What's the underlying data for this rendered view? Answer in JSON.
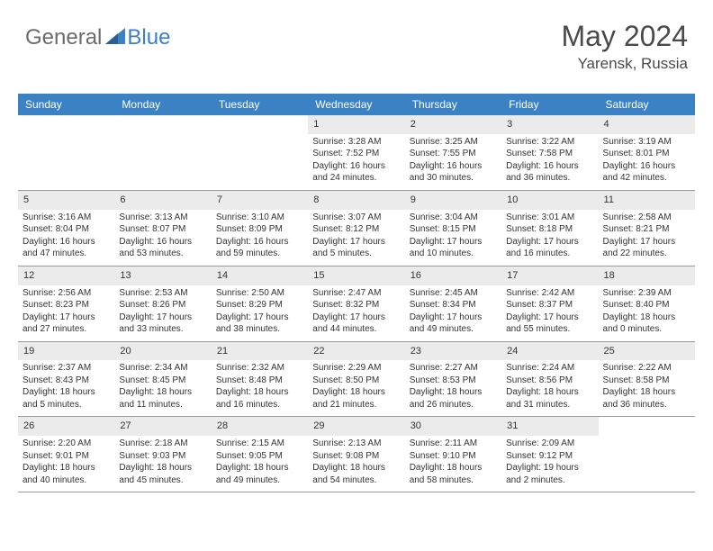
{
  "brand": {
    "text1": "General",
    "text2": "Blue"
  },
  "title": "May 2024",
  "location": "Yarensk, Russia",
  "colors": {
    "header_bg": "#3b82c4",
    "header_fg": "#ffffff",
    "daynum_bg": "#ebebeb",
    "text": "#333333",
    "border": "#999999",
    "brand_gray": "#6b6b6b",
    "brand_blue": "#3b82c4"
  },
  "dayHeaders": [
    "Sunday",
    "Monday",
    "Tuesday",
    "Wednesday",
    "Thursday",
    "Friday",
    "Saturday"
  ],
  "weeks": [
    [
      {
        "empty": true
      },
      {
        "empty": true
      },
      {
        "empty": true
      },
      {
        "num": "1",
        "sunrise": "Sunrise: 3:28 AM",
        "sunset": "Sunset: 7:52 PM",
        "daylight": "Daylight: 16 hours and 24 minutes."
      },
      {
        "num": "2",
        "sunrise": "Sunrise: 3:25 AM",
        "sunset": "Sunset: 7:55 PM",
        "daylight": "Daylight: 16 hours and 30 minutes."
      },
      {
        "num": "3",
        "sunrise": "Sunrise: 3:22 AM",
        "sunset": "Sunset: 7:58 PM",
        "daylight": "Daylight: 16 hours and 36 minutes."
      },
      {
        "num": "4",
        "sunrise": "Sunrise: 3:19 AM",
        "sunset": "Sunset: 8:01 PM",
        "daylight": "Daylight: 16 hours and 42 minutes."
      }
    ],
    [
      {
        "num": "5",
        "sunrise": "Sunrise: 3:16 AM",
        "sunset": "Sunset: 8:04 PM",
        "daylight": "Daylight: 16 hours and 47 minutes."
      },
      {
        "num": "6",
        "sunrise": "Sunrise: 3:13 AM",
        "sunset": "Sunset: 8:07 PM",
        "daylight": "Daylight: 16 hours and 53 minutes."
      },
      {
        "num": "7",
        "sunrise": "Sunrise: 3:10 AM",
        "sunset": "Sunset: 8:09 PM",
        "daylight": "Daylight: 16 hours and 59 minutes."
      },
      {
        "num": "8",
        "sunrise": "Sunrise: 3:07 AM",
        "sunset": "Sunset: 8:12 PM",
        "daylight": "Daylight: 17 hours and 5 minutes."
      },
      {
        "num": "9",
        "sunrise": "Sunrise: 3:04 AM",
        "sunset": "Sunset: 8:15 PM",
        "daylight": "Daylight: 17 hours and 10 minutes."
      },
      {
        "num": "10",
        "sunrise": "Sunrise: 3:01 AM",
        "sunset": "Sunset: 8:18 PM",
        "daylight": "Daylight: 17 hours and 16 minutes."
      },
      {
        "num": "11",
        "sunrise": "Sunrise: 2:58 AM",
        "sunset": "Sunset: 8:21 PM",
        "daylight": "Daylight: 17 hours and 22 minutes."
      }
    ],
    [
      {
        "num": "12",
        "sunrise": "Sunrise: 2:56 AM",
        "sunset": "Sunset: 8:23 PM",
        "daylight": "Daylight: 17 hours and 27 minutes."
      },
      {
        "num": "13",
        "sunrise": "Sunrise: 2:53 AM",
        "sunset": "Sunset: 8:26 PM",
        "daylight": "Daylight: 17 hours and 33 minutes."
      },
      {
        "num": "14",
        "sunrise": "Sunrise: 2:50 AM",
        "sunset": "Sunset: 8:29 PM",
        "daylight": "Daylight: 17 hours and 38 minutes."
      },
      {
        "num": "15",
        "sunrise": "Sunrise: 2:47 AM",
        "sunset": "Sunset: 8:32 PM",
        "daylight": "Daylight: 17 hours and 44 minutes."
      },
      {
        "num": "16",
        "sunrise": "Sunrise: 2:45 AM",
        "sunset": "Sunset: 8:34 PM",
        "daylight": "Daylight: 17 hours and 49 minutes."
      },
      {
        "num": "17",
        "sunrise": "Sunrise: 2:42 AM",
        "sunset": "Sunset: 8:37 PM",
        "daylight": "Daylight: 17 hours and 55 minutes."
      },
      {
        "num": "18",
        "sunrise": "Sunrise: 2:39 AM",
        "sunset": "Sunset: 8:40 PM",
        "daylight": "Daylight: 18 hours and 0 minutes."
      }
    ],
    [
      {
        "num": "19",
        "sunrise": "Sunrise: 2:37 AM",
        "sunset": "Sunset: 8:43 PM",
        "daylight": "Daylight: 18 hours and 5 minutes."
      },
      {
        "num": "20",
        "sunrise": "Sunrise: 2:34 AM",
        "sunset": "Sunset: 8:45 PM",
        "daylight": "Daylight: 18 hours and 11 minutes."
      },
      {
        "num": "21",
        "sunrise": "Sunrise: 2:32 AM",
        "sunset": "Sunset: 8:48 PM",
        "daylight": "Daylight: 18 hours and 16 minutes."
      },
      {
        "num": "22",
        "sunrise": "Sunrise: 2:29 AM",
        "sunset": "Sunset: 8:50 PM",
        "daylight": "Daylight: 18 hours and 21 minutes."
      },
      {
        "num": "23",
        "sunrise": "Sunrise: 2:27 AM",
        "sunset": "Sunset: 8:53 PM",
        "daylight": "Daylight: 18 hours and 26 minutes."
      },
      {
        "num": "24",
        "sunrise": "Sunrise: 2:24 AM",
        "sunset": "Sunset: 8:56 PM",
        "daylight": "Daylight: 18 hours and 31 minutes."
      },
      {
        "num": "25",
        "sunrise": "Sunrise: 2:22 AM",
        "sunset": "Sunset: 8:58 PM",
        "daylight": "Daylight: 18 hours and 36 minutes."
      }
    ],
    [
      {
        "num": "26",
        "sunrise": "Sunrise: 2:20 AM",
        "sunset": "Sunset: 9:01 PM",
        "daylight": "Daylight: 18 hours and 40 minutes."
      },
      {
        "num": "27",
        "sunrise": "Sunrise: 2:18 AM",
        "sunset": "Sunset: 9:03 PM",
        "daylight": "Daylight: 18 hours and 45 minutes."
      },
      {
        "num": "28",
        "sunrise": "Sunrise: 2:15 AM",
        "sunset": "Sunset: 9:05 PM",
        "daylight": "Daylight: 18 hours and 49 minutes."
      },
      {
        "num": "29",
        "sunrise": "Sunrise: 2:13 AM",
        "sunset": "Sunset: 9:08 PM",
        "daylight": "Daylight: 18 hours and 54 minutes."
      },
      {
        "num": "30",
        "sunrise": "Sunrise: 2:11 AM",
        "sunset": "Sunset: 9:10 PM",
        "daylight": "Daylight: 18 hours and 58 minutes."
      },
      {
        "num": "31",
        "sunrise": "Sunrise: 2:09 AM",
        "sunset": "Sunset: 9:12 PM",
        "daylight": "Daylight: 19 hours and 2 minutes."
      },
      {
        "empty": true
      }
    ]
  ]
}
